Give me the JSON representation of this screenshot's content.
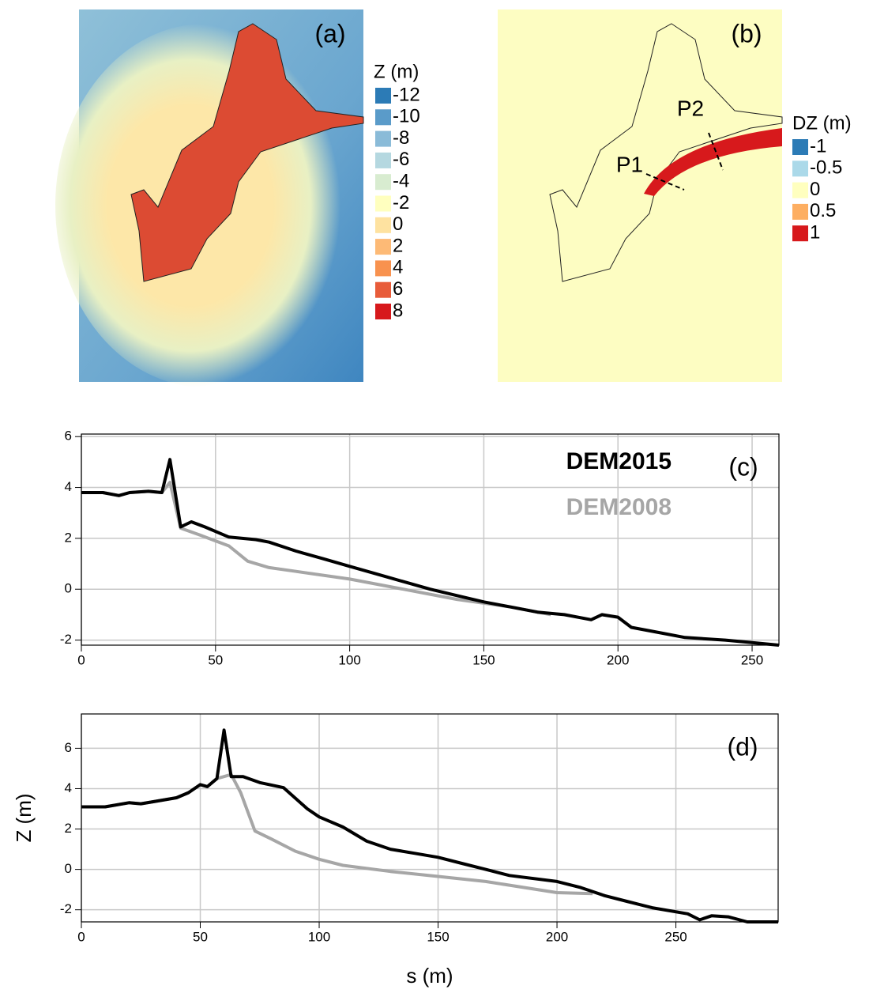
{
  "maps": [
    {
      "label": "(a)",
      "legend_title": "Z (m)",
      "legend": [
        {
          "label": -12,
          "color": "#2c7bb6"
        },
        {
          "label": -10,
          "color": "#5a9bc9"
        },
        {
          "label": -8,
          "color": "#8abbd8"
        },
        {
          "label": -6,
          "color": "#b5d8e0"
        },
        {
          "label": -4,
          "color": "#d8ecd0"
        },
        {
          "label": -2,
          "color": "#ffffbf"
        },
        {
          "label": 0,
          "color": "#fee2a0"
        },
        {
          "label": 2,
          "color": "#fdba76"
        },
        {
          "label": 4,
          "color": "#f8924f"
        },
        {
          "label": 6,
          "color": "#e85c3a"
        },
        {
          "label": 8,
          "color": "#d7191c"
        }
      ]
    },
    {
      "label": "(b)",
      "legend_title": "DZ (m)",
      "legend": [
        {
          "label": -1,
          "color": "#2c7bb6"
        },
        {
          "label": -0.5,
          "color": "#abd9e9"
        },
        {
          "label": 0,
          "color": "#ffffbf"
        },
        {
          "label": 0.5,
          "color": "#fdae61"
        },
        {
          "label": 1,
          "color": "#d7191c"
        }
      ],
      "annotations": [
        "P1",
        "P2"
      ]
    }
  ],
  "chart_data": [
    {
      "type": "line",
      "label": "(c)",
      "xlim": [
        0,
        260
      ],
      "xticks": [
        0,
        50,
        100,
        150,
        200,
        250
      ],
      "ylim": [
        -2.2,
        6.1
      ],
      "yticks": [
        -2,
        0,
        2,
        4,
        6
      ],
      "grid": true,
      "series": [
        {
          "name": "DEM2015",
          "color": "#000000",
          "x": [
            0,
            8,
            14,
            18,
            25,
            30,
            33,
            37,
            41,
            46,
            55,
            65,
            70,
            80,
            90,
            100,
            110,
            120,
            130,
            140,
            150,
            160,
            170,
            180,
            190,
            194,
            200,
            205,
            215,
            225,
            240,
            250,
            260
          ],
          "values": [
            3.8,
            3.8,
            3.68,
            3.8,
            3.85,
            3.8,
            5.1,
            2.45,
            2.65,
            2.45,
            2.05,
            1.95,
            1.85,
            1.5,
            1.2,
            0.9,
            0.6,
            0.3,
            0,
            -0.25,
            -0.5,
            -0.7,
            -0.9,
            -1.0,
            -1.2,
            -1.0,
            -1.1,
            -1.5,
            -1.7,
            -1.9,
            -2.0,
            -2.1,
            -2.2
          ]
        },
        {
          "name": "DEM2008",
          "color": "#a6a6a6",
          "x": [
            0,
            8,
            14,
            18,
            25,
            30,
            33,
            37,
            45,
            55,
            62,
            70,
            80,
            100,
            120,
            140,
            160,
            175
          ],
          "values": [
            3.8,
            3.8,
            3.68,
            3.8,
            3.85,
            3.8,
            4.2,
            2.4,
            2.1,
            1.7,
            1.1,
            0.85,
            0.7,
            0.4,
            0,
            -0.4,
            -0.7,
            -1.0
          ]
        }
      ]
    },
    {
      "type": "line",
      "label": "(d)",
      "xlabel": "s (m)",
      "ylabel": "Z (m)",
      "xlim": [
        0,
        293
      ],
      "xticks": [
        0,
        50,
        100,
        150,
        200,
        250
      ],
      "ylim": [
        -2.6,
        7.7
      ],
      "yticks": [
        -2,
        0,
        2,
        4,
        6
      ],
      "grid": true,
      "series": [
        {
          "name": "DEM2015",
          "color": "#000000",
          "x": [
            0,
            10,
            20,
            25,
            30,
            40,
            45,
            50,
            53,
            57,
            60,
            63,
            68,
            75,
            85,
            95,
            100,
            110,
            120,
            130,
            140,
            150,
            160,
            170,
            180,
            200,
            210,
            220,
            230,
            240,
            255,
            260,
            265,
            272,
            280,
            293
          ],
          "values": [
            3.1,
            3.1,
            3.3,
            3.25,
            3.35,
            3.55,
            3.8,
            4.2,
            4.1,
            4.5,
            6.9,
            4.6,
            4.6,
            4.3,
            4.05,
            3.0,
            2.6,
            2.1,
            1.4,
            1.0,
            0.8,
            0.6,
            0.3,
            0,
            -0.3,
            -0.6,
            -0.9,
            -1.3,
            -1.6,
            -1.9,
            -2.2,
            -2.5,
            -2.3,
            -2.35,
            -2.6,
            -2.6
          ]
        },
        {
          "name": "DEM2008",
          "color": "#a6a6a6",
          "x": [
            0,
            10,
            20,
            25,
            30,
            40,
            45,
            50,
            53,
            57,
            60,
            63,
            67,
            73,
            80,
            90,
            100,
            110,
            130,
            150,
            170,
            200,
            215
          ],
          "values": [
            3.1,
            3.1,
            3.3,
            3.25,
            3.35,
            3.55,
            3.8,
            4.2,
            4.1,
            4.5,
            4.6,
            4.7,
            3.8,
            1.9,
            1.5,
            0.9,
            0.5,
            0.2,
            -0.1,
            -0.35,
            -0.6,
            -1.15,
            -1.2
          ]
        }
      ]
    }
  ]
}
